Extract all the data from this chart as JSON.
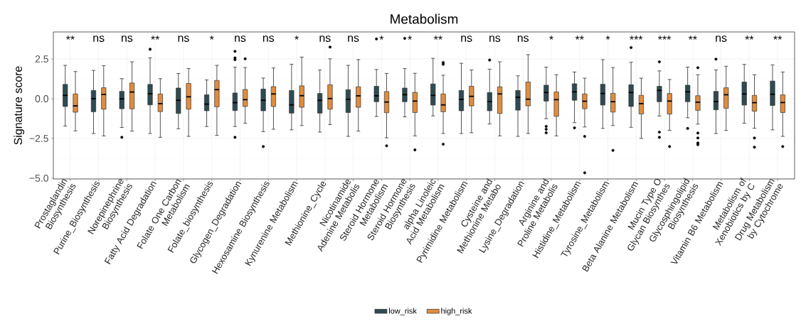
{
  "chart_data": {
    "type": "box",
    "title": "Metabolism",
    "ylabel": "Signature score",
    "categories": [
      "Prostaglandin Biosynthesis",
      "Purine_Biosynthesis",
      "Norepinephrine Biosynthesis",
      "Fatty Acid Degradation",
      "Folate One Carbon Metabolism",
      "Folate_biosynthesis",
      "Glycogen_Degradation",
      "Hexosamine Biosynthesis",
      "Kynurenine Metabolism",
      "Methionine_Cycle",
      "Nicotinamide Adenine Metabolis",
      "Steroid Hormone Metabolism",
      "Steroid Hormone Biosynthesis",
      "alpha Linoleic Acid Metabolism",
      "Pyrimidine Metabolism",
      "Cysteine and Methionine Metabo",
      "Lysine_Degradation",
      "Arginine and Proline Metabolis",
      "Histidine_Metabolism",
      "Tyrosine_Metabolism",
      "Beta Alanine Metabolism",
      "Mucin Type O Glycan Biosynthes",
      "Glycosphingolipid Biosynthesis",
      "Vitamin B6 Metabolism",
      "Metabolism of Xenobiotics by C",
      "Drug Metabolism by Cytochrome"
    ],
    "series": [
      {
        "name": "low_risk",
        "color": "#2f4a51",
        "boxes": [
          {
            "low": -1.72,
            "q1": -0.49,
            "median": 0.21,
            "q3": 0.9,
            "high": 2.1
          },
          {
            "low": -2.19,
            "q1": -0.82,
            "median": 0.0,
            "q3": 0.52,
            "high": 1.78
          },
          {
            "low": -1.81,
            "q1": -0.63,
            "median": -0.01,
            "q3": 0.46,
            "high": 1.26,
            "outliers": [
              -2.43
            ]
          },
          {
            "low": -2.19,
            "q1": -0.39,
            "median": 0.31,
            "q3": 0.9,
            "high": 2.57,
            "outliers": [
              3.11
            ]
          },
          {
            "low": -1.89,
            "q1": -0.93,
            "median": -0.1,
            "q3": 0.67,
            "high": 1.59
          },
          {
            "low": -1.75,
            "q1": -0.76,
            "median": -0.34,
            "q3": 0.25,
            "high": 1.18
          },
          {
            "low": -1.75,
            "q1": -0.75,
            "median": -0.25,
            "q3": 0.36,
            "high": 1.98,
            "outliers": [
              2.98,
              2.57,
              2.46,
              -2.43
            ]
          },
          {
            "low": -2.07,
            "q1": -0.76,
            "median": -0.1,
            "q3": 0.61,
            "high": 1.3,
            "outliers": [
              -3.01
            ]
          },
          {
            "low": -1.96,
            "q1": -0.91,
            "median": -0.39,
            "q3": 0.52,
            "high": 2.17
          },
          {
            "low": -2.1,
            "q1": -0.91,
            "median": -0.1,
            "q3": 0.33,
            "high": 1.81
          },
          {
            "low": -2.37,
            "q1": -0.87,
            "median": -0.04,
            "q3": 0.57,
            "high": 2.1
          },
          {
            "low": -1.12,
            "q1": -0.19,
            "median": 0.18,
            "q3": 0.78,
            "high": 1.84,
            "outliers": [
              3.76
            ]
          },
          {
            "low": -1.14,
            "q1": -0.19,
            "median": 0.25,
            "q3": 0.67,
            "high": 1.9,
            "outliers": [
              3.8
            ]
          },
          {
            "low": -1.08,
            "q1": -0.4,
            "median": 0.21,
            "q3": 0.93,
            "high": 2.54
          },
          {
            "low": -2.19,
            "q1": -0.76,
            "median": -0.04,
            "q3": 0.52,
            "high": 2.23
          },
          {
            "low": -1.59,
            "q1": -0.76,
            "median": -0.18,
            "q3": 0.39,
            "high": 1.86,
            "outliers": [
              2.43
            ]
          },
          {
            "low": -2.37,
            "q1": -0.72,
            "median": 0.09,
            "q3": 0.52,
            "high": 1.44
          },
          {
            "low": -1.26,
            "q1": -0.15,
            "median": 0.39,
            "q3": 0.85,
            "high": 1.99,
            "outliers": [
              -1.74,
              -1.92,
              -2.14
            ]
          },
          {
            "low": -1.51,
            "q1": -0.1,
            "median": 0.43,
            "q3": 0.94,
            "high": 1.68,
            "outliers": [
              -1.83
            ]
          },
          {
            "low": -1.87,
            "q1": -0.4,
            "median": 0.33,
            "q3": 0.91,
            "high": 2.46
          },
          {
            "low": -1.8,
            "q1": -0.49,
            "median": 0.39,
            "q3": 0.88,
            "high": 2.29,
            "outliers": [
              3.22
            ]
          },
          {
            "low": -1.09,
            "q1": -0.19,
            "median": 0.52,
            "q3": 0.78,
            "high": 1.75,
            "outliers": [
              2.32,
              -2.1,
              -2.43
            ]
          },
          {
            "low": -1.2,
            "q1": -0.19,
            "median": 0.43,
            "q3": 0.85,
            "high": 1.99,
            "outliers": [
              -1.87
            ]
          },
          {
            "low": -2.19,
            "q1": -0.7,
            "median": -0.18,
            "q3": 0.46,
            "high": 1.81,
            "outliers": [
              2.49
            ]
          },
          {
            "low": -1.54,
            "q1": -0.4,
            "median": 0.3,
            "q3": 1.05,
            "high": 2.16
          },
          {
            "low": -1.96,
            "q1": -0.43,
            "median": 0.28,
            "q3": 1.11,
            "high": 2.13
          }
        ]
      },
      {
        "name": "high_risk",
        "color": "#e08c3e",
        "boxes": [
          {
            "low": -2.02,
            "q1": -0.85,
            "median": -0.45,
            "q3": 0.3,
            "high": 1.71
          },
          {
            "low": -2.34,
            "q1": -0.66,
            "median": 0.27,
            "q3": 0.69,
            "high": 2.08
          },
          {
            "low": -2.04,
            "q1": -0.64,
            "median": 0.42,
            "q3": 0.99,
            "high": 2.32
          },
          {
            "low": -2.43,
            "q1": -0.81,
            "median": -0.31,
            "q3": 0.3,
            "high": 1.26
          },
          {
            "low": -2.37,
            "q1": -0.66,
            "median": 0.12,
            "q3": 0.96,
            "high": 1.9
          },
          {
            "low": -2.31,
            "q1": -0.51,
            "median": 0.57,
            "q3": 1.15,
            "high": 2.1
          },
          {
            "low": -1.54,
            "q1": -0.49,
            "median": -0.06,
            "q3": 0.58,
            "high": 1.96,
            "outliers": [
              2.51
            ]
          },
          {
            "low": -1.92,
            "q1": -0.49,
            "median": 0.3,
            "q3": 0.76,
            "high": 1.93
          },
          {
            "low": -1.69,
            "q1": -0.54,
            "median": 0.19,
            "q3": 0.81,
            "high": 2.62
          },
          {
            "low": -1.63,
            "q1": -0.66,
            "median": 0.01,
            "q3": 0.88,
            "high": 2.51,
            "outliers": [
              3.25
            ]
          },
          {
            "low": -2.04,
            "q1": -0.54,
            "median": 0.18,
            "q3": 0.75,
            "high": 2.46
          },
          {
            "low": -2.46,
            "q1": -0.88,
            "median": -0.21,
            "q3": 0.45,
            "high": 1.59,
            "outliers": [
              -2.96
            ]
          },
          {
            "low": -2.34,
            "q1": -0.87,
            "median": -0.15,
            "q3": 0.4,
            "high": 1.6,
            "outliers": [
              -3.22
            ]
          },
          {
            "low": -2.19,
            "q1": -0.82,
            "median": -0.39,
            "q3": 0.3,
            "high": 1.48,
            "outliers": [
              2.28,
              2.17,
              -2.86
            ]
          },
          {
            "low": -2.14,
            "q1": -0.45,
            "median": 0.15,
            "q3": 0.78,
            "high": 1.81
          },
          {
            "low": -2.34,
            "q1": -0.93,
            "median": 0.3,
            "q3": 0.75,
            "high": 2.32
          },
          {
            "low": -2.19,
            "q1": -0.45,
            "median": -0.03,
            "q3": 1.05,
            "high": 2.77
          },
          {
            "low": -2.34,
            "q1": -1.11,
            "median": -0.06,
            "q3": 0.43,
            "high": 1.51
          },
          {
            "low": -1.78,
            "q1": -0.63,
            "median": -0.16,
            "q3": 0.3,
            "high": 1.29,
            "outliers": [
              -2.37,
              -4.66
            ]
          },
          {
            "low": -1.69,
            "q1": -0.84,
            "median": -0.19,
            "q3": 0.34,
            "high": 1.96,
            "outliers": [
              -3.25
            ]
          },
          {
            "low": -2.5,
            "q1": -0.96,
            "median": -0.31,
            "q3": 0.21,
            "high": 1.29
          },
          {
            "low": -1.99,
            "q1": -0.97,
            "median": -0.15,
            "q3": 0.33,
            "high": 1.21,
            "outliers": [
              -3.01
            ]
          },
          {
            "low": -1.6,
            "q1": -0.73,
            "median": -0.22,
            "q3": 0.19,
            "high": 1.51,
            "outliers": [
              1.95,
              -2.16,
              -2.47,
              -2.78,
              -2.89
            ]
          },
          {
            "low": -1.99,
            "q1": -0.6,
            "median": 0.25,
            "q3": 0.69,
            "high": 2.04
          },
          {
            "low": -1.86,
            "q1": -0.79,
            "median": -0.25,
            "q3": 0.21,
            "high": 1.51,
            "outliers": [
              -2.47,
              -3.05
            ]
          },
          {
            "low": -2.37,
            "q1": -0.87,
            "median": -0.24,
            "q3": 0.24,
            "high": 1.68,
            "outliers": [
              -3.01
            ]
          }
        ]
      }
    ],
    "ylim": [
      -5.05,
      4.2
    ],
    "yticks": [
      {
        "value": -5,
        "label": "−5.0"
      },
      {
        "value": -2.5,
        "label": "−2.5"
      },
      {
        "value": 0,
        "label": "0.0"
      },
      {
        "value": 2.5,
        "label": "2.5"
      }
    ],
    "grid": true,
    "legend": "bottom",
    "annotations": [
      "**",
      "ns",
      "ns",
      "**",
      "ns",
      "*",
      "ns",
      "ns",
      "*",
      "ns",
      "ns",
      "*",
      "*",
      "**",
      "ns",
      "ns",
      "ns",
      "*",
      "**",
      "*",
      "***",
      "***",
      "**",
      "ns",
      "**",
      "**"
    ]
  }
}
